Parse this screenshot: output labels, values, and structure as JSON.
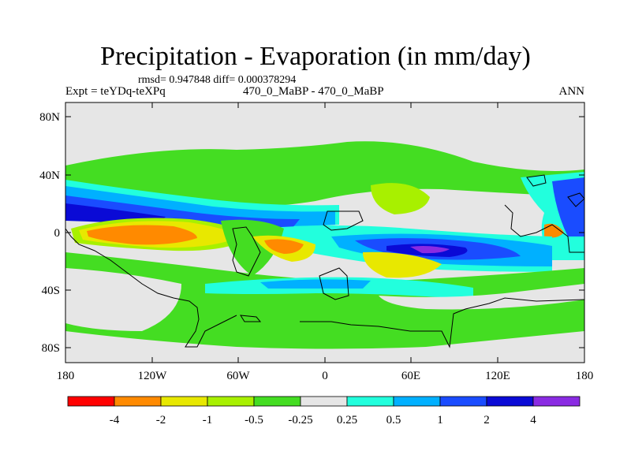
{
  "title": "Precipitation - Evaporation (in mm/day)",
  "stats": "rmsd= 0.947848  diff= 0.000378294",
  "left_label": "Expt = teYDq-teXPq",
  "center_label": "470_0_MaBP - 470_0_MaBP",
  "right_label": "ANN",
  "map": {
    "lat_ticks": [
      "80N",
      "40N",
      "0",
      "40S",
      "80S"
    ],
    "lon_ticks": [
      "180",
      "120W",
      "60W",
      "0",
      "60E",
      "120E",
      "180"
    ]
  },
  "colorbar": {
    "colors": [
      "#ff0000",
      "#ff8a00",
      "#e8e800",
      "#a8f000",
      "#44dd22",
      "#e6e6e6",
      "#22ffdd",
      "#00b0ff",
      "#1a4cff",
      "#0a0ad6",
      "#8a2be2"
    ],
    "labels": [
      "-4",
      "-2",
      "-1",
      "-0.5",
      "-0.25",
      "0.25",
      "0.5",
      "1",
      "2",
      "4"
    ]
  }
}
